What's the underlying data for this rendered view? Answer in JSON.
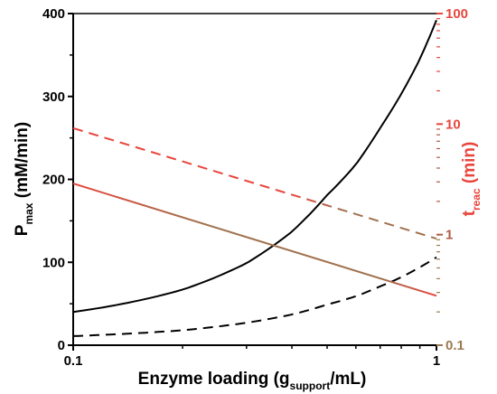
{
  "chart_data": {
    "type": "line",
    "x_scale": "log",
    "x_range": [
      0.1,
      1
    ],
    "x_ticks": [
      0.1,
      1
    ],
    "x_tick_labels": [
      "0.1",
      "1"
    ],
    "xlabel": {
      "main": "Enzyme loading (g",
      "sub": "support",
      "tail": "/mL)"
    },
    "y_left": {
      "label": {
        "main": "P",
        "sub": "max",
        "tail": " (mM/min)"
      },
      "range": [
        0,
        400
      ],
      "ticks": [
        0,
        100,
        200,
        300,
        400
      ],
      "tick_labels": [
        "0",
        "100",
        "200",
        "300",
        "400"
      ],
      "scale": "linear",
      "color": "#000000"
    },
    "y_right": {
      "label": {
        "main": "t",
        "sub": "reac",
        "tail": " (min)"
      },
      "range": [
        0.1,
        100
      ],
      "ticks": [
        0.1,
        1,
        10,
        100
      ],
      "tick_labels": [
        "0.1",
        "1",
        "10",
        "100"
      ],
      "scale": "log",
      "color": "#e8453c"
    },
    "series": [
      {
        "axis": "left",
        "style": "solid",
        "color": "#000000",
        "x": [
          0.1,
          0.2,
          0.3,
          0.4,
          0.5,
          0.6,
          0.7,
          0.8,
          0.9,
          1.0
        ],
        "y": [
          40,
          67,
          99,
          137,
          181,
          218,
          262,
          303,
          345,
          392
        ]
      },
      {
        "axis": "left",
        "style": "dashed",
        "color": "#000000",
        "x": [
          0.1,
          0.2,
          0.3,
          0.4,
          0.5,
          0.6,
          0.7,
          0.8,
          0.9,
          1.0
        ],
        "y": [
          11,
          18,
          27,
          37,
          49,
          59,
          71,
          82,
          94,
          106
        ]
      },
      {
        "axis": "right",
        "style": "solid",
        "color": "#e8453c",
        "fade_to": "#a0714e",
        "x": [
          0.1,
          1.0
        ],
        "y": [
          2.9,
          0.28
        ]
      },
      {
        "axis": "right",
        "style": "dashed",
        "color": "#e8453c",
        "fade_to": "#a0714e",
        "x": [
          0.1,
          1.0
        ],
        "y": [
          9.2,
          0.92
        ]
      }
    ]
  }
}
